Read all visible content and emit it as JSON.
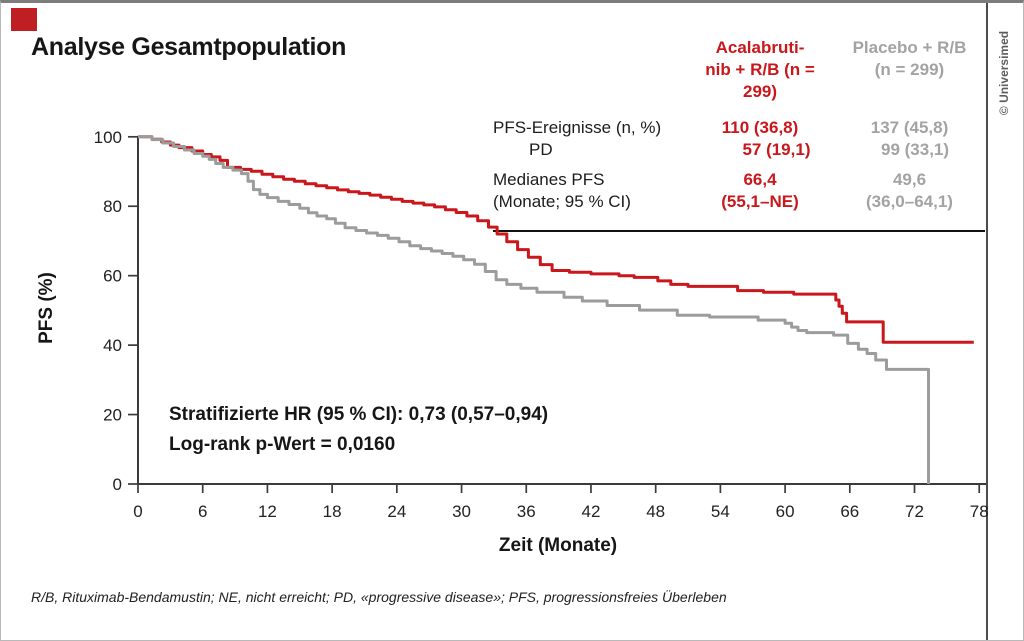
{
  "page": {
    "title": "Analyse Gesamtpopulation",
    "copyright": "© Universimed",
    "footnote": "R/B, Rituximab-Bendamustin; NE, nicht erreicht; PD, «progressive disease»; PFS, progressionsfreies Überleben"
  },
  "colors": {
    "accent_red": "#c9171c",
    "muted_gray": "#a3a3a3",
    "axis": "#3a3a3a"
  },
  "stats_table": {
    "columns": [
      {
        "line1": "Acalabruti-",
        "line2": "nib + R/B (n = 299)"
      },
      {
        "line1": "Placebo + R/B",
        "line2": "(n = 299)"
      }
    ],
    "rows": [
      {
        "label": "PFS-Ereignisse (n, %)",
        "acala": "110 (36,8)",
        "placebo": "137 (45,8)"
      },
      {
        "label": "PD",
        "acala": "57 (19,1)",
        "placebo": "99 (33,1)"
      },
      {
        "label": "Medianes PFS",
        "label2": "(Monate; 95 % CI)",
        "acala": "66,4",
        "acala2": "(55,1–NE)",
        "placebo": "49,6",
        "placebo2": "(36,0–64,1)"
      }
    ]
  },
  "annotation": {
    "line1": "Stratifizierte HR (95 % CI): 0,73 (0,57–0,94)",
    "line2": "Log-rank p-Wert = 0,0160"
  },
  "chart_data": {
    "type": "line",
    "subtype": "kaplan-meier-step",
    "title": "Analyse Gesamtpopulation",
    "xlabel": "Zeit (Monate)",
    "ylabel": "PFS (%)",
    "xlim": [
      0,
      78
    ],
    "ylim": [
      0,
      100
    ],
    "x_ticks": [
      0,
      6,
      12,
      18,
      24,
      30,
      36,
      42,
      48,
      54,
      60,
      66,
      72,
      78
    ],
    "y_ticks": [
      0,
      20,
      40,
      60,
      80,
      100
    ],
    "grid": false,
    "legend_position": "table-top-right",
    "axis_color": "#3a3a3a",
    "series": [
      {
        "name": "Acalabrutinib + R/B (n = 299)",
        "color": "#c9171c",
        "median_pfs_months": "66,4 (55,1–NE)",
        "events": "110 (36,8)",
        "points": [
          [
            0,
            100
          ],
          [
            1.3,
            99.3
          ],
          [
            2.2,
            98.5
          ],
          [
            3,
            97.6
          ],
          [
            3.8,
            96.9
          ],
          [
            5,
            95.9
          ],
          [
            6,
            94.9
          ],
          [
            6.8,
            94.2
          ],
          [
            7.6,
            93.2
          ],
          [
            8.3,
            91.2
          ],
          [
            9.5,
            90.6
          ],
          [
            10.5,
            90.1
          ],
          [
            11.5,
            89.2
          ],
          [
            12.5,
            88.5
          ],
          [
            13.5,
            87.8
          ],
          [
            14.5,
            87.2
          ],
          [
            15.5,
            86.5
          ],
          [
            16.5,
            85.9
          ],
          [
            17.5,
            85.3
          ],
          [
            18.5,
            84.7
          ],
          [
            19.5,
            84.2
          ],
          [
            20.5,
            83.7
          ],
          [
            21.5,
            83.2
          ],
          [
            22.5,
            82.6
          ],
          [
            23.5,
            82
          ],
          [
            24.5,
            81.4
          ],
          [
            25.5,
            80.9
          ],
          [
            26.5,
            80.4
          ],
          [
            27.5,
            79.8
          ],
          [
            28.5,
            79
          ],
          [
            29.5,
            78.2
          ],
          [
            30.5,
            77.2
          ],
          [
            31.5,
            75.8
          ],
          [
            32.5,
            74
          ],
          [
            33.3,
            72
          ],
          [
            34.2,
            69.8
          ],
          [
            35.2,
            67.5
          ],
          [
            36.2,
            65.3
          ],
          [
            37.3,
            63.2
          ],
          [
            38.4,
            61.5
          ],
          [
            40,
            61
          ],
          [
            42,
            60.5
          ],
          [
            44.6,
            60
          ],
          [
            46,
            59.5
          ],
          [
            48.2,
            58.5
          ],
          [
            49.4,
            57.5
          ],
          [
            51,
            56.9
          ],
          [
            55.6,
            55.7
          ],
          [
            58,
            55.2
          ],
          [
            60.8,
            54.7
          ],
          [
            64.7,
            53
          ],
          [
            65,
            51.2
          ],
          [
            65.3,
            49.2
          ],
          [
            65.7,
            46.7
          ],
          [
            69.1,
            40.8
          ],
          [
            77.5,
            40.8
          ]
        ]
      },
      {
        "name": "Placebo + R/B (n = 299)",
        "color": "#9c9c9c",
        "median_pfs_months": "49,6 (36,0–64,1)",
        "events": "137 (45,8)",
        "points": [
          [
            0,
            100
          ],
          [
            1.3,
            99.2
          ],
          [
            2.3,
            98.2
          ],
          [
            3.3,
            97.2
          ],
          [
            4.3,
            96.2
          ],
          [
            5.2,
            95.2
          ],
          [
            6,
            94.4
          ],
          [
            6.6,
            93.5
          ],
          [
            7.2,
            92.3
          ],
          [
            7.9,
            91.2
          ],
          [
            8.8,
            90.4
          ],
          [
            9.6,
            89.4
          ],
          [
            10.2,
            87.2
          ],
          [
            10.7,
            84.8
          ],
          [
            11.3,
            83.4
          ],
          [
            12,
            82.5
          ],
          [
            13,
            81.4
          ],
          [
            14,
            80.5
          ],
          [
            15,
            79.4
          ],
          [
            15.8,
            78.1
          ],
          [
            16.6,
            77.2
          ],
          [
            17.5,
            76.4
          ],
          [
            18.3,
            75.1
          ],
          [
            19.2,
            73.8
          ],
          [
            20.2,
            73
          ],
          [
            21.2,
            72.3
          ],
          [
            22.2,
            71.6
          ],
          [
            23.2,
            70.8
          ],
          [
            24.2,
            69.8
          ],
          [
            25.2,
            68.6
          ],
          [
            26.2,
            67.8
          ],
          [
            27.2,
            67.1
          ],
          [
            28.2,
            66.4
          ],
          [
            29.2,
            65.6
          ],
          [
            30.2,
            64.6
          ],
          [
            31.2,
            63.3
          ],
          [
            32.2,
            61.2
          ],
          [
            33.2,
            58.8
          ],
          [
            34.2,
            57.5
          ],
          [
            35.5,
            56.4
          ],
          [
            37,
            55.2
          ],
          [
            39.5,
            53.8
          ],
          [
            41.2,
            52.7
          ],
          [
            43.5,
            51.4
          ],
          [
            46.5,
            50.1
          ],
          [
            50,
            48.6
          ],
          [
            53,
            48.1
          ],
          [
            57.5,
            47.2
          ],
          [
            60,
            46.3
          ],
          [
            60.6,
            45.2
          ],
          [
            61.2,
            44.2
          ],
          [
            62,
            43.6
          ],
          [
            64.5,
            42.9
          ],
          [
            65.8,
            40.5
          ],
          [
            66.8,
            38.8
          ],
          [
            67.6,
            37.6
          ],
          [
            68.4,
            35.7
          ],
          [
            69.4,
            33
          ],
          [
            73.3,
            33
          ],
          [
            73.3,
            0
          ]
        ]
      }
    ],
    "annotations": [
      "Stratifizierte HR (95 % CI): 0,73 (0,57–0,94)",
      "Log-rank p-Wert = 0,0160"
    ]
  }
}
